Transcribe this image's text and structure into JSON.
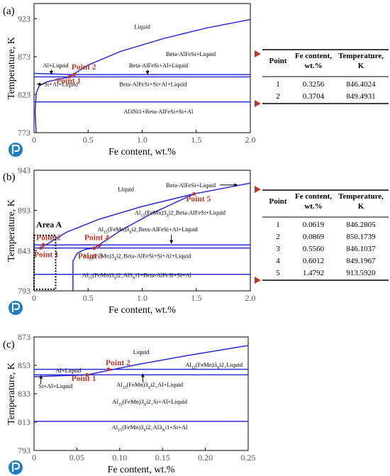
{
  "colors": {
    "curve": "#2b2bd6",
    "axis": "#000000",
    "point_label": "#c0392b",
    "tick": "#555555",
    "arrow": "#c0392b",
    "badge": "#1c7fc2"
  },
  "icons": {
    "badge": "p-logo-icon"
  },
  "chart_data": [
    {
      "id": "a",
      "type": "line",
      "panel_label": "(a)",
      "xlabel": "Fe content, wt.%",
      "ylabel": "Temperature, K",
      "xlim": [
        0,
        2.0
      ],
      "ylim": [
        773,
        943
      ],
      "xticks": [
        0,
        0.5,
        1.0,
        1.5,
        2.0
      ],
      "xtick_labels": [
        "0",
        "0.5",
        "1.0",
        "1.5",
        "2.0"
      ],
      "yticks": [
        773,
        823,
        873,
        923
      ],
      "ytick_labels": [
        "773",
        "823",
        "873",
        "923"
      ],
      "series": [
        {
          "kind": "curve",
          "points": [
            [
              0.3256,
              846.4
            ],
            [
              0.5,
              862
            ],
            [
              0.8,
              880
            ],
            [
              1.2,
              897
            ],
            [
              1.6,
              911
            ],
            [
              2.0,
              922
            ]
          ]
        },
        {
          "kind": "curve",
          "points": [
            [
              0.0,
              851
            ],
            [
              0.3704,
              849.5
            ],
            [
              2.0,
              849.5
            ]
          ]
        },
        {
          "kind": "curve",
          "points": [
            [
              0.0,
              846.4
            ],
            [
              2.0,
              846.4
            ]
          ]
        },
        {
          "kind": "curve",
          "points": [
            [
              0.0,
              813.5
            ],
            [
              2.0,
              813.5
            ]
          ]
        },
        {
          "kind": "curve",
          "points": [
            [
              0.02,
              773
            ],
            [
              0.01,
              800
            ],
            [
              0.02,
              825
            ],
            [
              0.05,
              835
            ],
            [
              0.12,
              840
            ],
            [
              0.3256,
              846.4
            ]
          ]
        }
      ],
      "points": [
        {
          "label": "Point 1",
          "x": 0.3256,
          "y": 846.4024,
          "label_x": 0.32,
          "label_y": 838,
          "anchor": "middle"
        },
        {
          "label": "Point 2",
          "x": 0.3704,
          "y": 849.4931,
          "label_x": 0.46,
          "label_y": 856,
          "anchor": "middle"
        }
      ],
      "regions": [
        {
          "text": "Liquid",
          "x": 1.0,
          "y": 910,
          "sub": []
        },
        {
          "text": "Beta-AlFeSi+Liquid",
          "x": 1.45,
          "y": 874,
          "sub": []
        },
        {
          "text": "Al+Liquid",
          "x": 0.2,
          "y": 859,
          "sub": []
        },
        {
          "text": "Beta-AlFeSi+Al+Liquid",
          "x": 1.15,
          "y": 859,
          "sub": []
        },
        {
          "text": "Si+Al+Liquid",
          "x": 0.25,
          "y": 834,
          "sub": []
        },
        {
          "text": "Beta-AlFeSi+Si+Al+Liquid",
          "x": 1.1,
          "y": 834,
          "sub": []
        },
        {
          "text": "Al3Ni1+Beta-AlFeSi+Si+Al",
          "x": 1.15,
          "y": 798,
          "sub": []
        }
      ],
      "annotation_arrows": [
        {
          "x": 0.16,
          "y1": 856,
          "y2": 850
        },
        {
          "x": 1.05,
          "y1": 856,
          "y2": 850
        },
        {
          "x": 0.03,
          "x2": 0.09,
          "y": 834,
          "dir": "left"
        }
      ],
      "table": {
        "headers": [
          "Point",
          "Fe content, wt.%",
          "Temperature, K"
        ],
        "rows": [
          [
            "1",
            "0.3256",
            "846.4024"
          ],
          [
            "2",
            "0.3704",
            "849.4931"
          ]
        ]
      }
    },
    {
      "id": "b",
      "type": "line",
      "panel_label": "(b)",
      "xlabel": "Fe content, wt.%",
      "ylabel": "Temperature, K",
      "xlim": [
        0,
        2.0
      ],
      "ylim": [
        793,
        943
      ],
      "xticks": [
        0,
        0.5,
        1.0,
        1.5,
        2.0
      ],
      "xtick_labels": [
        "0",
        "0.5",
        "1.0",
        "1.5",
        "2.0"
      ],
      "yticks": [
        793,
        843,
        893,
        943
      ],
      "ytick_labels": [
        "793",
        "843",
        "893",
        "943"
      ],
      "series": [
        {
          "kind": "curve",
          "points": [
            [
              0.0619,
              846.3
            ],
            [
              0.3,
              866
            ],
            [
              0.6,
              882
            ],
            [
              1.0,
              898
            ],
            [
              1.4792,
              913.6
            ],
            [
              2.0,
              927
            ]
          ]
        },
        {
          "kind": "curve",
          "points": [
            [
              0.556,
              846.1
            ],
            [
              0.8,
              868
            ],
            [
              1.1,
              890
            ],
            [
              1.4792,
              913.6
            ]
          ]
        },
        {
          "kind": "curve",
          "points": [
            [
              0.0,
              850.2
            ],
            [
              2.0,
              850.2
            ]
          ]
        },
        {
          "kind": "curve",
          "points": [
            [
              0.0,
              846.3
            ],
            [
              2.0,
              846.3
            ]
          ]
        },
        {
          "kind": "curve",
          "points": [
            [
              0.0,
              813.5
            ],
            [
              2.0,
              813.5
            ]
          ]
        },
        {
          "kind": "curve",
          "points": [
            [
              0.36,
              793
            ],
            [
              0.36,
              830
            ],
            [
              0.4,
              840
            ],
            [
              0.47,
              844.5
            ],
            [
              0.556,
              846.1
            ]
          ]
        }
      ],
      "points": [
        {
          "label": "Point 1",
          "x": 0.0619,
          "y": 846.2805,
          "label_x": 0.0,
          "label_y": 835,
          "anchor": "start"
        },
        {
          "label": "Point 2",
          "x": 0.0869,
          "y": 850.1739,
          "label_x": 0.02,
          "label_y": 856,
          "anchor": "start"
        },
        {
          "label": "Point 3",
          "x": 0.556,
          "y": 846.1037,
          "label_x": 0.52,
          "label_y": 833,
          "anchor": "middle"
        },
        {
          "label": "Point 4",
          "x": 0.6012,
          "y": 849.1967,
          "label_x": 0.58,
          "label_y": 856,
          "anchor": "middle"
        },
        {
          "label": "Point 5",
          "x": 1.4792,
          "y": 913.592,
          "label_x": 1.52,
          "label_y": 904,
          "anchor": "middle"
        }
      ],
      "regions": [
        {
          "text": "Liquid",
          "x": 0.85,
          "y": 917,
          "sub": []
        },
        {
          "text": "Beta-AlFeSi+Liquid",
          "x": 1.45,
          "y": 922,
          "sub": []
        },
        {
          "text": "Al15(FeMn)3Si2+Beta-AlFeSi+Liquid",
          "x": 1.35,
          "y": 888,
          "sub": [
            [
              2,
              4
            ],
            [
              11,
              12
            ],
            [
              14,
              15
            ]
          ]
        },
        {
          "text": "Al15(FeMn)3Si2+Beta-AlFeSi+Al+Liquid",
          "x": 1.05,
          "y": 867,
          "sub": [
            [
              2,
              4
            ],
            [
              11,
              12
            ],
            [
              14,
              15
            ]
          ]
        },
        {
          "text": "Al15(FeMn)3Si2+Beta-AlFeSi+Si+Al+Liquid",
          "x": 0.95,
          "y": 834,
          "sub": [
            [
              2,
              4
            ],
            [
              11,
              12
            ],
            [
              14,
              15
            ]
          ]
        },
        {
          "text": "Al15(FeMn)3Si2+Al3Ni1+Beta-AlFeSi+Si+Al",
          "x": 0.95,
          "y": 810,
          "sub": [
            [
              2,
              4
            ],
            [
              11,
              12
            ],
            [
              14,
              15
            ],
            [
              18,
              19
            ]
          ]
        },
        {
          "text": "Area A",
          "x": 0.02,
          "y": 872,
          "sub": [],
          "bold": true,
          "anchor": "start"
        }
      ],
      "annotation_arrows": [
        {
          "x": 1.27,
          "y1": 863,
          "y2": 852
        },
        {
          "x": 1.72,
          "x2": 1.88,
          "y": 922,
          "dir": "right"
        }
      ],
      "area_box": {
        "x0": 0.0,
        "x1": 0.2,
        "y0": 795,
        "y1": 862
      },
      "table": {
        "headers": [
          "Point",
          "Fe content, wt.%",
          "Temperature, K"
        ],
        "rows": [
          [
            "1",
            "0.0619",
            "846.2805"
          ],
          [
            "2",
            "0.0869",
            "850.1739"
          ],
          [
            "3",
            "0.5560",
            "846.1037"
          ],
          [
            "4",
            "0.6012",
            "849.1967"
          ],
          [
            "5",
            "1.4792",
            "913.5920"
          ]
        ]
      }
    },
    {
      "id": "c",
      "type": "line",
      "panel_label": "(c)",
      "xlabel": "Fe content, wt.%",
      "ylabel": "Temperature, K",
      "xlim": [
        0,
        0.25
      ],
      "ylim": [
        793,
        873
      ],
      "xticks": [
        0,
        0.05,
        0.1,
        0.15,
        0.2,
        0.25
      ],
      "xtick_labels": [
        "0",
        "0.05",
        "0.10",
        "0.15",
        "0.20",
        "0.25"
      ],
      "yticks": [
        793,
        813,
        833,
        853,
        873
      ],
      "ytick_labels": [
        "793",
        "813",
        "833",
        "853",
        "873"
      ],
      "series": [
        {
          "kind": "curve",
          "points": [
            [
              0.0,
              845
            ],
            [
              0.0619,
              846.3
            ],
            [
              0.12,
              853.5
            ],
            [
              0.18,
              860
            ],
            [
              0.25,
              867
            ]
          ]
        },
        {
          "kind": "curve",
          "points": [
            [
              0.0,
              850.2
            ],
            [
              0.25,
              850.2
            ]
          ]
        },
        {
          "kind": "curve",
          "points": [
            [
              0.0,
              846.3
            ],
            [
              0.25,
              846.3
            ]
          ]
        },
        {
          "kind": "curve",
          "points": [
            [
              0.0,
              813.5
            ],
            [
              0.25,
              813.5
            ]
          ]
        }
      ],
      "points": [
        {
          "label": "Point 1",
          "x": 0.0619,
          "y": 846.2805,
          "label_x": 0.058,
          "label_y": 842,
          "anchor": "middle"
        },
        {
          "label": "Point 2",
          "x": 0.0869,
          "y": 850.1739,
          "label_x": 0.098,
          "label_y": 853,
          "anchor": "middle"
        }
      ],
      "regions": [
        {
          "text": "Liquid",
          "x": 0.125,
          "y": 861,
          "sub": []
        },
        {
          "text": "Al15(FeMn)3Si2+Liquid",
          "x": 0.21,
          "y": 852,
          "sub": [
            [
              2,
              4
            ],
            [
              11,
              12
            ],
            [
              14,
              15
            ]
          ]
        },
        {
          "text": "Al+Liquid",
          "x": 0.04,
          "y": 848,
          "sub": []
        },
        {
          "text": "Si+Al+Liquid",
          "x": 0.025,
          "y": 837,
          "sub": []
        },
        {
          "text": "Al15(FeMn)3Si2+Al+Liquid",
          "x": 0.135,
          "y": 838,
          "sub": [
            [
              2,
              4
            ],
            [
              11,
              12
            ],
            [
              14,
              15
            ]
          ]
        },
        {
          "text": "Al15(FeMn)3Si2+Si+Al+Liquid",
          "x": 0.135,
          "y": 826,
          "sub": [
            [
              2,
              4
            ],
            [
              11,
              12
            ],
            [
              14,
              15
            ]
          ]
        },
        {
          "text": "Al15(FeMn)3Si2+Al3Ni1+Si+Al",
          "x": 0.135,
          "y": 808,
          "sub": [
            [
              2,
              4
            ],
            [
              11,
              12
            ],
            [
              14,
              15
            ],
            [
              18,
              19
            ]
          ]
        }
      ],
      "annotation_arrows": [
        {
          "x": 0.127,
          "y1": 841,
          "y2": 847
        },
        {
          "x": 0.008,
          "y1": 840,
          "y2": 846
        }
      ]
    }
  ]
}
